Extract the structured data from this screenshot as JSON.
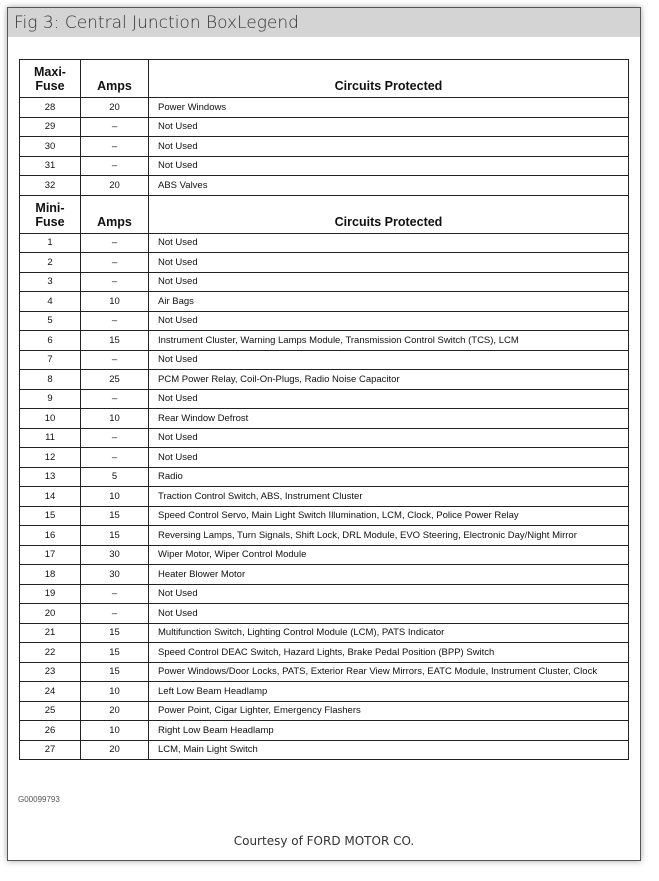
{
  "title": "Fig 3: Central Junction BoxLegend",
  "maxi_header": {
    "fuse": "Maxi-\nFuse",
    "fuse_l1": "Maxi-",
    "fuse_l2": "Fuse",
    "amps": "Amps",
    "circuits": "Circuits Protected"
  },
  "maxi_rows": [
    [
      "28",
      "20",
      "Power Windows"
    ],
    [
      "29",
      "–",
      "Not Used"
    ],
    [
      "30",
      "–",
      "Not Used"
    ],
    [
      "31",
      "–",
      "Not Used"
    ],
    [
      "32",
      "20",
      "ABS Valves"
    ]
  ],
  "mini_header": {
    "fuse_l1": "Mini-",
    "fuse_l2": "Fuse",
    "amps": "Amps",
    "circuits": "Circuits Protected"
  },
  "mini_rows": [
    [
      "1",
      "–",
      "Not Used"
    ],
    [
      "2",
      "–",
      "Not Used"
    ],
    [
      "3",
      "–",
      "Not Used"
    ],
    [
      "4",
      "10",
      "Air Bags"
    ],
    [
      "5",
      "–",
      "Not Used"
    ],
    [
      "6",
      "15",
      "Instrument Cluster, Warning Lamps Module, Transmission Control Switch (TCS), LCM"
    ],
    [
      "7",
      "–",
      "Not Used"
    ],
    [
      "8",
      "25",
      "PCM Power Relay, Coil-On-Plugs, Radio Noise Capacitor"
    ],
    [
      "9",
      "–",
      "Not Used"
    ],
    [
      "10",
      "10",
      "Rear Window Defrost"
    ],
    [
      "11",
      "–",
      "Not Used"
    ],
    [
      "12",
      "–",
      "Not Used"
    ],
    [
      "13",
      "5",
      "Radio"
    ],
    [
      "14",
      "10",
      "Traction Control Switch, ABS, Instrument Cluster"
    ],
    [
      "15",
      "15",
      "Speed Control Servo, Main Light Switch Illumination, LCM, Clock, Police Power Relay"
    ],
    [
      "16",
      "15",
      "Reversing Lamps, Turn Signals, Shift Lock, DRL Module, EVO Steering, Electronic Day/Night Mirror"
    ],
    [
      "17",
      "30",
      "Wiper Motor, Wiper Control Module"
    ],
    [
      "18",
      "30",
      "Heater Blower Motor"
    ],
    [
      "19",
      "–",
      "Not Used"
    ],
    [
      "20",
      "–",
      "Not Used"
    ],
    [
      "21",
      "15",
      "Multifunction Switch, Lighting Control Module (LCM), PATS Indicator"
    ],
    [
      "22",
      "15",
      "Speed Control DEAC Switch, Hazard Lights, Brake Pedal Position (BPP) Switch"
    ],
    [
      "23",
      "15",
      "Power Windows/Door Locks, PATS, Exterior Rear View Mirrors, EATC Module, Instrument Cluster, Clock"
    ],
    [
      "24",
      "10",
      "Left Low Beam Headlamp"
    ],
    [
      "25",
      "20",
      "Power Point, Cigar Lighter, Emergency Flashers"
    ],
    [
      "26",
      "10",
      "Right Low Beam Headlamp"
    ],
    [
      "27",
      "20",
      "LCM, Main Light Switch"
    ]
  ],
  "figure_code": "G00099793",
  "courtesy": "Courtesy of FORD MOTOR CO."
}
